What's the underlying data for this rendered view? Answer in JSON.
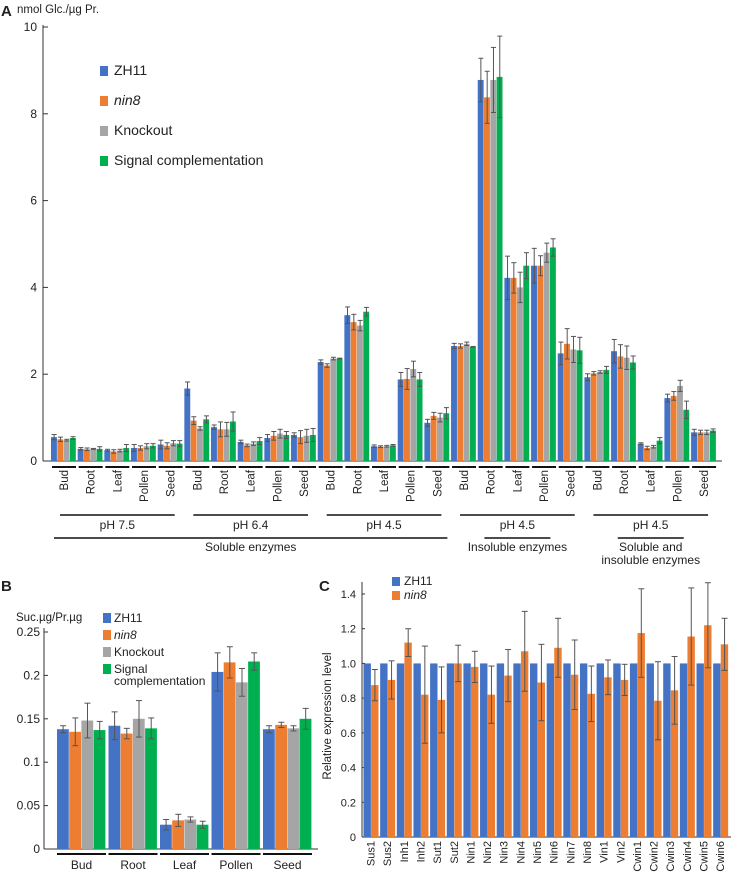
{
  "colors": {
    "ZH11": "#4472c4",
    "nin8": "#ed7d31",
    "Knockout": "#a5a5a5",
    "Signal complementation": "#00b050",
    "error": "#555555"
  },
  "chart_data": [
    {
      "panel": "A",
      "type": "bar",
      "ylabel": "nmol Glc./µg Pr.",
      "ylim": [
        0,
        10
      ],
      "yticks": [
        0,
        2,
        4,
        6,
        8,
        10
      ],
      "legend": [
        "ZH11",
        "nin8",
        "Knockout",
        "Signal complementation"
      ],
      "legend_placement": "top-left",
      "tissues": [
        "Bud",
        "Root",
        "Leaf",
        "Pollen",
        "Seed"
      ],
      "conditions": [
        {
          "ph": "pH 7.5",
          "values": [
            [
              0.55,
              0.5,
              0.48,
              0.53
            ],
            [
              0.28,
              0.27,
              0.28,
              0.28
            ],
            [
              0.25,
              0.22,
              0.24,
              0.3
            ],
            [
              0.3,
              0.3,
              0.34,
              0.35
            ],
            [
              0.38,
              0.35,
              0.41,
              0.4
            ]
          ],
          "errors": [
            [
              0.06,
              0.05,
              0.02,
              0.03
            ],
            [
              0.03,
              0.03,
              0.01,
              0.05
            ],
            [
              0.02,
              0.04,
              0.03,
              0.08
            ],
            [
              0.08,
              0.05,
              0.06,
              0.05
            ],
            [
              0.1,
              0.07,
              0.06,
              0.07
            ]
          ]
        },
        {
          "ph": "pH 6.4",
          "values": [
            [
              1.67,
              0.93,
              0.75,
              0.96
            ],
            [
              0.78,
              0.73,
              0.73,
              0.91
            ],
            [
              0.44,
              0.36,
              0.4,
              0.46
            ],
            [
              0.53,
              0.58,
              0.63,
              0.6
            ],
            [
              0.6,
              0.55,
              0.58,
              0.6
            ]
          ],
          "errors": [
            [
              0.15,
              0.09,
              0.04,
              0.08
            ],
            [
              0.05,
              0.17,
              0.16,
              0.22
            ],
            [
              0.04,
              0.03,
              0.04,
              0.08
            ],
            [
              0.08,
              0.1,
              0.1,
              0.08
            ],
            [
              0.05,
              0.15,
              0.15,
              0.15
            ]
          ]
        },
        {
          "ph": "pH 4.5",
          "values": [
            [
              2.28,
              2.2,
              2.36,
              2.36
            ],
            [
              3.36,
              3.2,
              3.12,
              3.44
            ],
            [
              0.34,
              0.33,
              0.34,
              0.36
            ],
            [
              1.88,
              1.89,
              2.12,
              1.88
            ],
            [
              0.88,
              1.04,
              1.0,
              1.1
            ]
          ],
          "errors": [
            [
              0.05,
              0.04,
              0.03,
              0.01
            ],
            [
              0.19,
              0.18,
              0.12,
              0.1
            ],
            [
              0.03,
              0.02,
              0.02,
              0.02
            ],
            [
              0.16,
              0.24,
              0.18,
              0.16
            ],
            [
              0.08,
              0.08,
              0.1,
              0.13
            ]
          ]
        },
        {
          "ph": "pH 4.5",
          "values": [
            [
              2.65,
              2.65,
              2.7,
              2.63
            ],
            [
              8.78,
              8.38,
              8.78,
              8.85
            ],
            [
              4.22,
              4.22,
              4.0,
              4.5
            ],
            [
              4.5,
              4.5,
              4.8,
              4.92
            ],
            [
              2.48,
              2.7,
              2.57,
              2.55
            ]
          ],
          "errors": [
            [
              0.06,
              0.05,
              0.04,
              0.01
            ],
            [
              0.5,
              0.6,
              0.75,
              0.94
            ],
            [
              0.5,
              0.35,
              0.35,
              0.3
            ],
            [
              0.4,
              0.23,
              0.22,
              0.2
            ],
            [
              0.26,
              0.35,
              0.3,
              0.3
            ]
          ]
        },
        {
          "ph": "pH 4.5",
          "values": [
            [
              1.93,
              2.02,
              2.05,
              2.1
            ],
            [
              2.53,
              2.41,
              2.38,
              2.27
            ],
            [
              0.4,
              0.3,
              0.33,
              0.47
            ],
            [
              1.45,
              1.5,
              1.73,
              1.18
            ],
            [
              0.66,
              0.66,
              0.66,
              0.7
            ]
          ],
          "errors": [
            [
              0.08,
              0.04,
              0.03,
              0.08
            ],
            [
              0.27,
              0.27,
              0.27,
              0.15
            ],
            [
              0.02,
              0.04,
              0.03,
              0.07
            ],
            [
              0.09,
              0.1,
              0.13,
              0.2
            ],
            [
              0.07,
              0.05,
              0.05,
              0.04
            ]
          ]
        }
      ],
      "enzyme_groups": [
        {
          "label": [
            "Soluble enzymes"
          ],
          "conditions": [
            0,
            2
          ]
        },
        {
          "label": [
            "Insoluble enzymes"
          ],
          "conditions": [
            3,
            3
          ]
        },
        {
          "label": [
            "Soluble and",
            "insoluble enzymes"
          ],
          "conditions": [
            4,
            4
          ]
        }
      ]
    },
    {
      "panel": "B",
      "type": "bar",
      "ylabel": "Suc.µg/Pr.µg",
      "ylim": [
        0,
        0.25
      ],
      "yticks": [
        "0",
        "0.05",
        "0.1",
        "0.15",
        "0.2",
        "0.25"
      ],
      "legend": [
        "ZH11",
        "nin8",
        "Knockout",
        "Signal complementation"
      ],
      "legend_lines": [
        [
          "ZH11"
        ],
        [
          "nin8"
        ],
        [
          "Knockout"
        ],
        [
          "Signal",
          "complementation"
        ]
      ],
      "legend_placement": "top-left",
      "categories": [
        "Bud",
        "Root",
        "Leaf",
        "Pollen",
        "Seed"
      ],
      "values": [
        [
          0.138,
          0.135,
          0.148,
          0.137
        ],
        [
          0.142,
          0.133,
          0.15,
          0.139
        ],
        [
          0.028,
          0.033,
          0.034,
          0.028
        ],
        [
          0.204,
          0.215,
          0.192,
          0.216
        ],
        [
          0.138,
          0.143,
          0.139,
          0.15
        ]
      ],
      "errors": [
        [
          0.004,
          0.016,
          0.02,
          0.01
        ],
        [
          0.016,
          0.006,
          0.021,
          0.012
        ],
        [
          0.006,
          0.007,
          0.003,
          0.004
        ],
        [
          0.022,
          0.018,
          0.016,
          0.01
        ],
        [
          0.004,
          0.003,
          0.003,
          0.012
        ]
      ]
    },
    {
      "panel": "C",
      "type": "bar",
      "ylabel": "Relative expression level",
      "ylim": [
        0,
        1.4
      ],
      "yticks": [
        "0",
        "0.2",
        "0.4",
        "0.6",
        "0.8",
        "1.0",
        "1.2",
        "1.4"
      ],
      "legend": [
        "ZH11",
        "nin8"
      ],
      "legend_placement": "top-left",
      "categories": [
        "Sus1",
        "Sus2",
        "Inh1",
        "Inh2",
        "Sut1",
        "Sut2",
        "Nin1",
        "Nin2",
        "Nin3",
        "Nin4",
        "Nin5",
        "Nin6",
        "Nin7",
        "Nin8",
        "Vin1",
        "Vin2",
        "Cwin1",
        "Cwin2",
        "Cwin3",
        "Cwin4",
        "Cwin5",
        "Cwin6"
      ],
      "series": [
        {
          "name": "ZH11",
          "values": [
            1,
            1,
            1,
            1,
            1,
            1,
            1,
            1,
            1,
            1,
            1,
            1,
            1,
            1,
            1,
            1,
            1,
            1,
            1,
            1,
            1,
            1
          ]
        },
        {
          "name": "nin8",
          "values": [
            0.875,
            0.905,
            1.12,
            0.82,
            0.79,
            1.0,
            0.98,
            0.82,
            0.93,
            1.07,
            0.89,
            1.09,
            0.935,
            0.825,
            0.92,
            0.905,
            1.175,
            0.785,
            0.845,
            1.155,
            1.22,
            1.11
          ],
          "errors": [
            0.09,
            0.11,
            0.08,
            0.28,
            0.19,
            0.105,
            0.09,
            0.165,
            0.15,
            0.23,
            0.22,
            0.17,
            0.2,
            0.16,
            0.1,
            0.09,
            0.255,
            0.225,
            0.195,
            0.28,
            0.245,
            0.15
          ]
        }
      ]
    }
  ]
}
